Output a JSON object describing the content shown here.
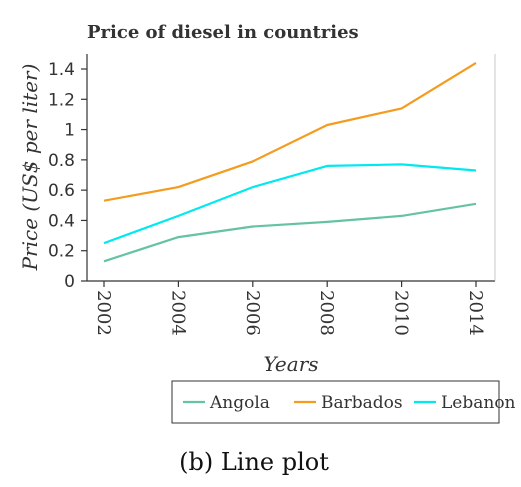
{
  "chart_data": {
    "type": "line",
    "title": "Price of diesel in countries",
    "xlabel": "Years",
    "ylabel": "Price (US$ per liter)",
    "categories": [
      "2002",
      "2004",
      "2006",
      "2008",
      "2010",
      "2014"
    ],
    "ylim": [
      0,
      1.5
    ],
    "yticks": [
      "0",
      "0.2",
      "0.4",
      "0.6",
      "0.8",
      "1",
      "1.2",
      "1.4"
    ],
    "series": [
      {
        "name": "Angola",
        "color": "#66c2a5",
        "values": [
          0.13,
          0.29,
          0.36,
          0.39,
          0.43,
          0.51
        ]
      },
      {
        "name": "Barbados",
        "color": "#f39c1e",
        "values": [
          0.53,
          0.62,
          0.79,
          1.03,
          1.14,
          1.44
        ]
      },
      {
        "name": "Lebanon",
        "color": "#00e8f0",
        "values": [
          0.25,
          0.43,
          0.62,
          0.76,
          0.77,
          0.73
        ]
      }
    ],
    "legend_position": "bottom",
    "grid": false
  },
  "caption": "(b) Line plot"
}
